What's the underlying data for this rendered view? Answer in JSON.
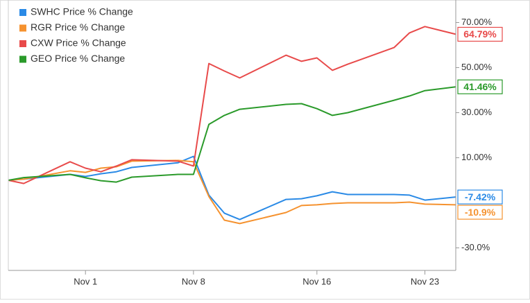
{
  "chart_data": {
    "type": "line",
    "x": [
      -4,
      -3,
      0,
      1,
      2,
      3,
      4,
      7,
      8,
      9,
      10,
      11,
      14,
      15,
      16,
      17,
      18,
      21,
      22,
      23,
      25
    ],
    "xlim": [
      -4,
      25
    ],
    "xticks": [
      {
        "value": 1,
        "label": "Nov 1"
      },
      {
        "value": 8,
        "label": "Nov 8"
      },
      {
        "value": 16,
        "label": "Nov 16"
      },
      {
        "value": 23,
        "label": "Nov 23"
      }
    ],
    "ylim": [
      -40,
      80
    ],
    "yticks": [
      {
        "value": 70,
        "label": "70.00%"
      },
      {
        "value": 50,
        "label": "50.00%"
      },
      {
        "value": 30,
        "label": "30.00%"
      },
      {
        "value": 10,
        "label": "10.00%"
      },
      {
        "value": -30,
        "label": "-30.0%"
      }
    ],
    "legend": "top-left",
    "series": [
      {
        "name": "SWHC Price % Change",
        "color": "#2a8ae6",
        "values": [
          0,
          0.5,
          2.6,
          1.7,
          2.9,
          3.8,
          5.7,
          7.8,
          10.6,
          -6.6,
          -14.6,
          -17.4,
          -8.5,
          -8.2,
          -6.9,
          -5.1,
          -6.3,
          -6.3,
          -6.6,
          -8.8,
          -7.42
        ],
        "end_label": "-7.42%"
      },
      {
        "name": "RGR Price % Change",
        "color": "#f5922f",
        "values": [
          0,
          0.5,
          4.2,
          3.5,
          5.4,
          6,
          8.5,
          8.8,
          8.2,
          -7.2,
          -17.7,
          -19.2,
          -14.3,
          -11.2,
          -10.9,
          -10.3,
          -10,
          -10,
          -9.7,
          -10.6,
          -10.9
        ],
        "end_label": "-10.9%"
      },
      {
        "name": "CXW Price % Change",
        "color": "#e84a4a",
        "values": [
          0,
          -1.4,
          8.2,
          5.4,
          3.8,
          6.3,
          9.1,
          8.5,
          6.3,
          51.8,
          48.5,
          45.4,
          55.5,
          52.8,
          54.3,
          48.8,
          51.5,
          58.9,
          65.4,
          68.2,
          64.79
        ],
        "end_label": "64.79%"
      },
      {
        "name": "GEO Price % Change",
        "color": "#2a9a2a",
        "values": [
          0,
          1.2,
          2.6,
          1.1,
          -0.2,
          -0.8,
          1.4,
          2.6,
          2.6,
          24.8,
          28.8,
          31.5,
          33.7,
          34,
          31.8,
          28.8,
          30,
          35.5,
          37.4,
          39.8,
          41.46
        ],
        "end_label": "41.46%"
      }
    ]
  }
}
